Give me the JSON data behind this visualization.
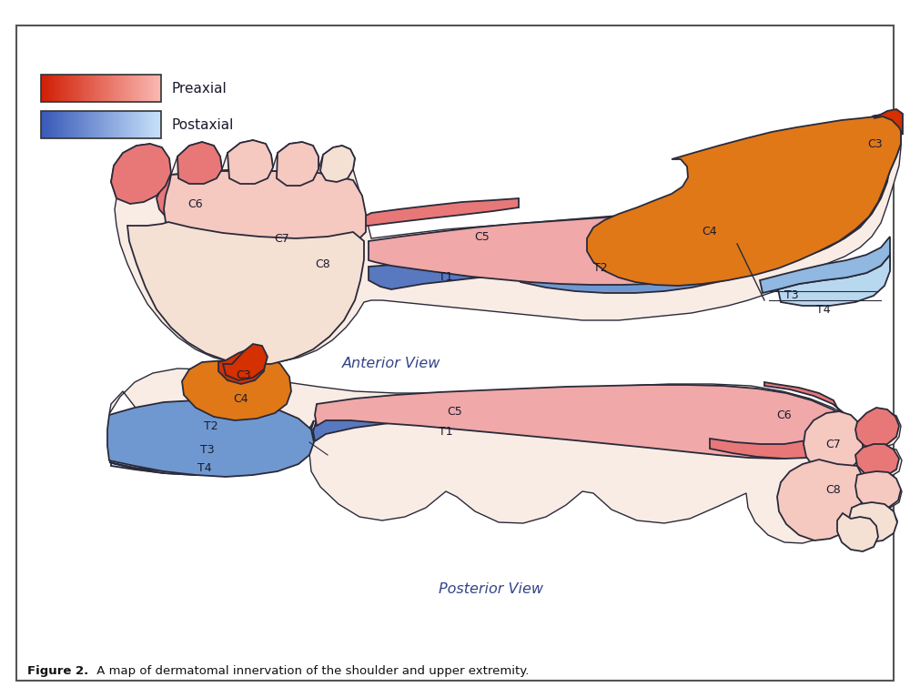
{
  "title_bold": "Figure 2.",
  "title_rest": " A map of dermatomal innervation of the shoulder and upper extremity.",
  "legend_preaxial": "Preaxial",
  "legend_postaxial": "Postaxial",
  "anterior_view_label": "Anterior View",
  "posterior_view_label": "Posterior View",
  "bg_color": "#ffffff",
  "outline_color": "#2a2a3a",
  "label_color": "#1a1a2e",
  "colors": {
    "C3": "#d43000",
    "C4": "#e07818",
    "C5": "#f0a8a8",
    "C6": "#e87878",
    "C7": "#f5c8c0",
    "C8": "#f5e0d4",
    "T1": "#5878c0",
    "T2": "#7098d0",
    "T3": "#90b8e0",
    "T4": "#b8d8f0",
    "skin": "#f8ece4"
  },
  "figsize": [
    10.0,
    7.66
  ],
  "dpi": 100
}
